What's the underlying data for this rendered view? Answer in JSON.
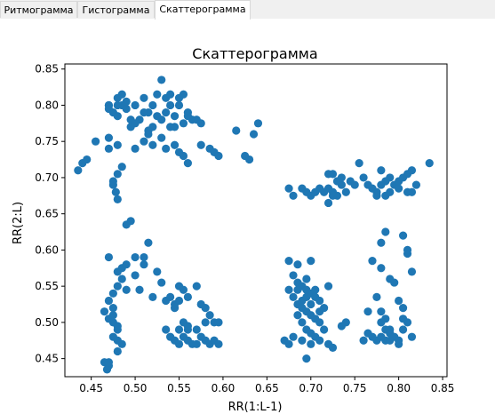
{
  "tabs": [
    {
      "label": "Ритмограмма",
      "active": false
    },
    {
      "label": "Гистограмма",
      "active": false
    },
    {
      "label": "Скаттерограмма",
      "active": true
    }
  ],
  "colors": {
    "point": "#1f77b4",
    "axes": "#000000"
  },
  "chart_data": {
    "type": "scatter",
    "title": "Скаттерограмма",
    "xlabel": "RR(1:L-1)",
    "ylabel": "RR(2:L)",
    "xlim": [
      0.42,
      0.855
    ],
    "ylim": [
      0.425,
      0.857
    ],
    "xticks": [
      0.45,
      0.5,
      0.55,
      0.6,
      0.65,
      0.7,
      0.75,
      0.8,
      0.85
    ],
    "xtick_labels": [
      "0.45",
      "0.50",
      "0.55",
      "0.60",
      "0.65",
      "0.70",
      "0.75",
      "0.80",
      "0.85"
    ],
    "yticks": [
      0.45,
      0.5,
      0.55,
      0.6,
      0.65,
      0.7,
      0.75,
      0.8,
      0.85
    ],
    "ytick_labels": [
      "0.45",
      "0.50",
      "0.55",
      "0.60",
      "0.65",
      "0.70",
      "0.75",
      "0.80",
      "0.85"
    ],
    "grid": false,
    "series": [
      {
        "points": [
          [
            0.47,
            0.8
          ],
          [
            0.475,
            0.79
          ],
          [
            0.48,
            0.81
          ],
          [
            0.47,
            0.8
          ],
          [
            0.485,
            0.8
          ],
          [
            0.49,
            0.795
          ],
          [
            0.495,
            0.78
          ],
          [
            0.48,
            0.785
          ],
          [
            0.47,
            0.795
          ],
          [
            0.48,
            0.8
          ],
          [
            0.485,
            0.815
          ],
          [
            0.49,
            0.805
          ],
          [
            0.5,
            0.8
          ],
          [
            0.51,
            0.81
          ],
          [
            0.515,
            0.79
          ],
          [
            0.52,
            0.8
          ],
          [
            0.525,
            0.785
          ],
          [
            0.53,
            0.78
          ],
          [
            0.535,
            0.79
          ],
          [
            0.54,
            0.8
          ],
          [
            0.545,
            0.785
          ],
          [
            0.55,
            0.8
          ],
          [
            0.555,
            0.815
          ],
          [
            0.55,
            0.81
          ],
          [
            0.56,
            0.79
          ],
          [
            0.565,
            0.78
          ],
          [
            0.53,
            0.835
          ],
          [
            0.535,
            0.81
          ],
          [
            0.54,
            0.815
          ],
          [
            0.525,
            0.815
          ],
          [
            0.545,
            0.77
          ],
          [
            0.555,
            0.775
          ],
          [
            0.52,
            0.77
          ],
          [
            0.515,
            0.765
          ],
          [
            0.51,
            0.79
          ],
          [
            0.505,
            0.78
          ],
          [
            0.5,
            0.775
          ],
          [
            0.495,
            0.77
          ],
          [
            0.54,
            0.77
          ],
          [
            0.56,
            0.785
          ],
          [
            0.57,
            0.78
          ],
          [
            0.575,
            0.775
          ],
          [
            0.435,
            0.71
          ],
          [
            0.44,
            0.72
          ],
          [
            0.445,
            0.725
          ],
          [
            0.455,
            0.75
          ],
          [
            0.47,
            0.755
          ],
          [
            0.48,
            0.745
          ],
          [
            0.485,
            0.715
          ],
          [
            0.48,
            0.705
          ],
          [
            0.475,
            0.69
          ],
          [
            0.478,
            0.68
          ],
          [
            0.48,
            0.67
          ],
          [
            0.475,
            0.695
          ],
          [
            0.47,
            0.74
          ],
          [
            0.5,
            0.74
          ],
          [
            0.51,
            0.75
          ],
          [
            0.515,
            0.76
          ],
          [
            0.52,
            0.745
          ],
          [
            0.53,
            0.755
          ],
          [
            0.535,
            0.74
          ],
          [
            0.545,
            0.745
          ],
          [
            0.55,
            0.735
          ],
          [
            0.555,
            0.73
          ],
          [
            0.56,
            0.72
          ],
          [
            0.575,
            0.745
          ],
          [
            0.585,
            0.74
          ],
          [
            0.59,
            0.735
          ],
          [
            0.615,
            0.765
          ],
          [
            0.625,
            0.73
          ],
          [
            0.63,
            0.725
          ],
          [
            0.635,
            0.76
          ],
          [
            0.64,
            0.775
          ],
          [
            0.595,
            0.73
          ],
          [
            0.675,
            0.685
          ],
          [
            0.68,
            0.675
          ],
          [
            0.69,
            0.685
          ],
          [
            0.695,
            0.68
          ],
          [
            0.7,
            0.675
          ],
          [
            0.705,
            0.68
          ],
          [
            0.71,
            0.685
          ],
          [
            0.715,
            0.68
          ],
          [
            0.72,
            0.685
          ],
          [
            0.725,
            0.68
          ],
          [
            0.73,
            0.675
          ],
          [
            0.735,
            0.69
          ],
          [
            0.74,
            0.68
          ],
          [
            0.745,
            0.695
          ],
          [
            0.75,
            0.69
          ],
          [
            0.755,
            0.72
          ],
          [
            0.72,
            0.665
          ],
          [
            0.725,
            0.675
          ],
          [
            0.73,
            0.695
          ],
          [
            0.735,
            0.7
          ],
          [
            0.72,
            0.705
          ],
          [
            0.725,
            0.705
          ],
          [
            0.76,
            0.7
          ],
          [
            0.765,
            0.69
          ],
          [
            0.77,
            0.685
          ],
          [
            0.775,
            0.68
          ],
          [
            0.78,
            0.69
          ],
          [
            0.785,
            0.675
          ],
          [
            0.79,
            0.68
          ],
          [
            0.795,
            0.69
          ],
          [
            0.8,
            0.695
          ],
          [
            0.805,
            0.7
          ],
          [
            0.81,
            0.705
          ],
          [
            0.815,
            0.71
          ],
          [
            0.82,
            0.69
          ],
          [
            0.835,
            0.72
          ],
          [
            0.78,
            0.71
          ],
          [
            0.79,
            0.7
          ],
          [
            0.8,
            0.685
          ],
          [
            0.81,
            0.68
          ],
          [
            0.815,
            0.68
          ],
          [
            0.785,
            0.695
          ],
          [
            0.775,
            0.675
          ],
          [
            0.47,
            0.59
          ],
          [
            0.48,
            0.57
          ],
          [
            0.485,
            0.575
          ],
          [
            0.49,
            0.635
          ],
          [
            0.495,
            0.64
          ],
          [
            0.5,
            0.59
          ],
          [
            0.51,
            0.59
          ],
          [
            0.515,
            0.61
          ],
          [
            0.49,
            0.58
          ],
          [
            0.485,
            0.56
          ],
          [
            0.48,
            0.55
          ],
          [
            0.49,
            0.545
          ],
          [
            0.475,
            0.54
          ],
          [
            0.47,
            0.53
          ],
          [
            0.475,
            0.52
          ],
          [
            0.465,
            0.515
          ],
          [
            0.47,
            0.505
          ],
          [
            0.475,
            0.5
          ],
          [
            0.48,
            0.49
          ],
          [
            0.475,
            0.48
          ],
          [
            0.48,
            0.475
          ],
          [
            0.485,
            0.47
          ],
          [
            0.465,
            0.445
          ],
          [
            0.47,
            0.44
          ],
          [
            0.468,
            0.435
          ],
          [
            0.47,
            0.445
          ],
          [
            0.5,
            0.565
          ],
          [
            0.505,
            0.545
          ],
          [
            0.51,
            0.58
          ],
          [
            0.52,
            0.535
          ],
          [
            0.525,
            0.57
          ],
          [
            0.53,
            0.555
          ],
          [
            0.535,
            0.53
          ],
          [
            0.54,
            0.535
          ],
          [
            0.545,
            0.52
          ],
          [
            0.55,
            0.55
          ],
          [
            0.555,
            0.545
          ],
          [
            0.56,
            0.535
          ],
          [
            0.57,
            0.55
          ],
          [
            0.575,
            0.525
          ],
          [
            0.58,
            0.52
          ],
          [
            0.585,
            0.51
          ],
          [
            0.59,
            0.5
          ],
          [
            0.595,
            0.5
          ],
          [
            0.54,
            0.48
          ],
          [
            0.545,
            0.475
          ],
          [
            0.55,
            0.47
          ],
          [
            0.555,
            0.48
          ],
          [
            0.56,
            0.475
          ],
          [
            0.565,
            0.47
          ],
          [
            0.57,
            0.47
          ],
          [
            0.575,
            0.48
          ],
          [
            0.58,
            0.475
          ],
          [
            0.585,
            0.47
          ],
          [
            0.59,
            0.475
          ],
          [
            0.595,
            0.47
          ],
          [
            0.535,
            0.49
          ],
          [
            0.55,
            0.49
          ],
          [
            0.56,
            0.49
          ],
          [
            0.57,
            0.49
          ],
          [
            0.555,
            0.5
          ],
          [
            0.56,
            0.495
          ],
          [
            0.58,
            0.5
          ],
          [
            0.545,
            0.525
          ],
          [
            0.55,
            0.53
          ],
          [
            0.475,
            0.51
          ],
          [
            0.48,
            0.495
          ],
          [
            0.48,
            0.46
          ],
          [
            0.675,
            0.585
          ],
          [
            0.68,
            0.565
          ],
          [
            0.685,
            0.555
          ],
          [
            0.69,
            0.55
          ],
          [
            0.695,
            0.545
          ],
          [
            0.7,
            0.54
          ],
          [
            0.705,
            0.535
          ],
          [
            0.71,
            0.53
          ],
          [
            0.715,
            0.52
          ],
          [
            0.72,
            0.55
          ],
          [
            0.675,
            0.545
          ],
          [
            0.68,
            0.535
          ],
          [
            0.685,
            0.525
          ],
          [
            0.69,
            0.52
          ],
          [
            0.695,
            0.515
          ],
          [
            0.7,
            0.51
          ],
          [
            0.705,
            0.505
          ],
          [
            0.71,
            0.5
          ],
          [
            0.715,
            0.49
          ],
          [
            0.685,
            0.51
          ],
          [
            0.69,
            0.5
          ],
          [
            0.695,
            0.49
          ],
          [
            0.7,
            0.485
          ],
          [
            0.705,
            0.48
          ],
          [
            0.67,
            0.475
          ],
          [
            0.675,
            0.47
          ],
          [
            0.68,
            0.48
          ],
          [
            0.69,
            0.475
          ],
          [
            0.695,
            0.45
          ],
          [
            0.7,
            0.47
          ],
          [
            0.71,
            0.475
          ],
          [
            0.72,
            0.47
          ],
          [
            0.725,
            0.465
          ],
          [
            0.735,
            0.495
          ],
          [
            0.74,
            0.5
          ],
          [
            0.685,
            0.58
          ],
          [
            0.695,
            0.56
          ],
          [
            0.7,
            0.585
          ],
          [
            0.69,
            0.53
          ],
          [
            0.7,
            0.525
          ],
          [
            0.71,
            0.515
          ],
          [
            0.685,
            0.545
          ],
          [
            0.695,
            0.535
          ],
          [
            0.705,
            0.545
          ],
          [
            0.77,
            0.585
          ],
          [
            0.775,
            0.535
          ],
          [
            0.765,
            0.515
          ],
          [
            0.78,
            0.5
          ],
          [
            0.785,
            0.49
          ],
          [
            0.79,
            0.485
          ],
          [
            0.795,
            0.48
          ],
          [
            0.8,
            0.475
          ],
          [
            0.805,
            0.49
          ],
          [
            0.81,
            0.5
          ],
          [
            0.815,
            0.48
          ],
          [
            0.785,
            0.505
          ],
          [
            0.78,
            0.515
          ],
          [
            0.79,
            0.56
          ],
          [
            0.795,
            0.555
          ],
          [
            0.8,
            0.53
          ],
          [
            0.805,
            0.52
          ],
          [
            0.81,
            0.595
          ],
          [
            0.815,
            0.57
          ],
          [
            0.775,
            0.475
          ],
          [
            0.77,
            0.48
          ],
          [
            0.76,
            0.475
          ],
          [
            0.765,
            0.485
          ],
          [
            0.785,
            0.475
          ],
          [
            0.79,
            0.475
          ],
          [
            0.8,
            0.47
          ],
          [
            0.78,
            0.61
          ],
          [
            0.805,
            0.62
          ],
          [
            0.81,
            0.6
          ],
          [
            0.785,
            0.625
          ],
          [
            0.78,
            0.575
          ],
          [
            0.805,
            0.505
          ],
          [
            0.78,
            0.48
          ],
          [
            0.79,
            0.49
          ]
        ]
      }
    ]
  }
}
